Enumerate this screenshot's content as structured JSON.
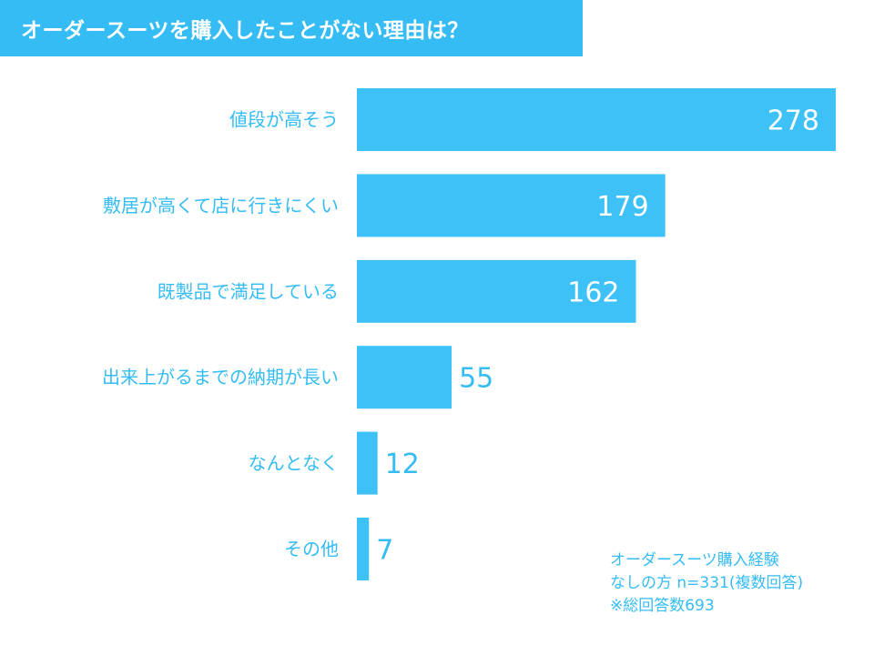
{
  "title": "オーダースーツを購入したことがない理由は？",
  "note": {
    "line1": "オーダースーツ購入経験",
    "line2": "なしの方 n=331(複数回答)",
    "line3": "※総回答数693"
  },
  "colors": {
    "accent": "#35bcf5",
    "bar": "#3ec1f7",
    "label_inside": "#ffffff",
    "label_outside": "#35bcf5"
  },
  "chart_data": {
    "type": "bar",
    "orientation": "horizontal",
    "title": "オーダースーツを購入したことがない理由は？",
    "categories": [
      "値段が高そう",
      "敷居が高くて店に行きにくい",
      "既製品で満足している",
      "出来上がるまでの納期が長い",
      "なんとなく",
      "その他"
    ],
    "values": [
      278,
      179,
      162,
      55,
      12,
      7
    ],
    "xlim": [
      0,
      278
    ],
    "grid": false,
    "legend": "none"
  }
}
